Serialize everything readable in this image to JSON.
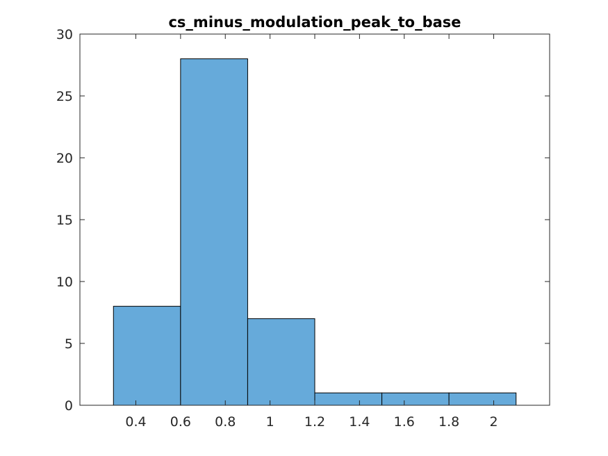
{
  "chart_data": {
    "type": "bar",
    "title": "cs_minus_modulation_peak_to_base",
    "xlabel": "",
    "ylabel": "",
    "xlim": [
      0.15,
      2.25
    ],
    "ylim": [
      0,
      30
    ],
    "bin_edges": [
      0.3,
      0.6,
      0.9,
      1.2,
      1.5,
      1.8,
      2.1
    ],
    "values": [
      8,
      28,
      7,
      1,
      1,
      1
    ],
    "x_ticks": [
      0.4,
      0.6,
      0.8,
      1,
      1.2,
      1.4,
      1.6,
      1.8,
      2
    ],
    "x_tick_labels": [
      "0.4",
      "0.6",
      "0.8",
      "1",
      "1.2",
      "1.4",
      "1.6",
      "1.8",
      "2"
    ],
    "y_ticks": [
      0,
      5,
      10,
      15,
      20,
      25,
      30
    ],
    "y_tick_labels": [
      "0",
      "5",
      "10",
      "15",
      "20",
      "25",
      "30"
    ],
    "grid": false,
    "legend": "none",
    "colors": {
      "bar_fill": "#66AADA",
      "bar_edge": "#000000",
      "axis": "#262626"
    }
  }
}
